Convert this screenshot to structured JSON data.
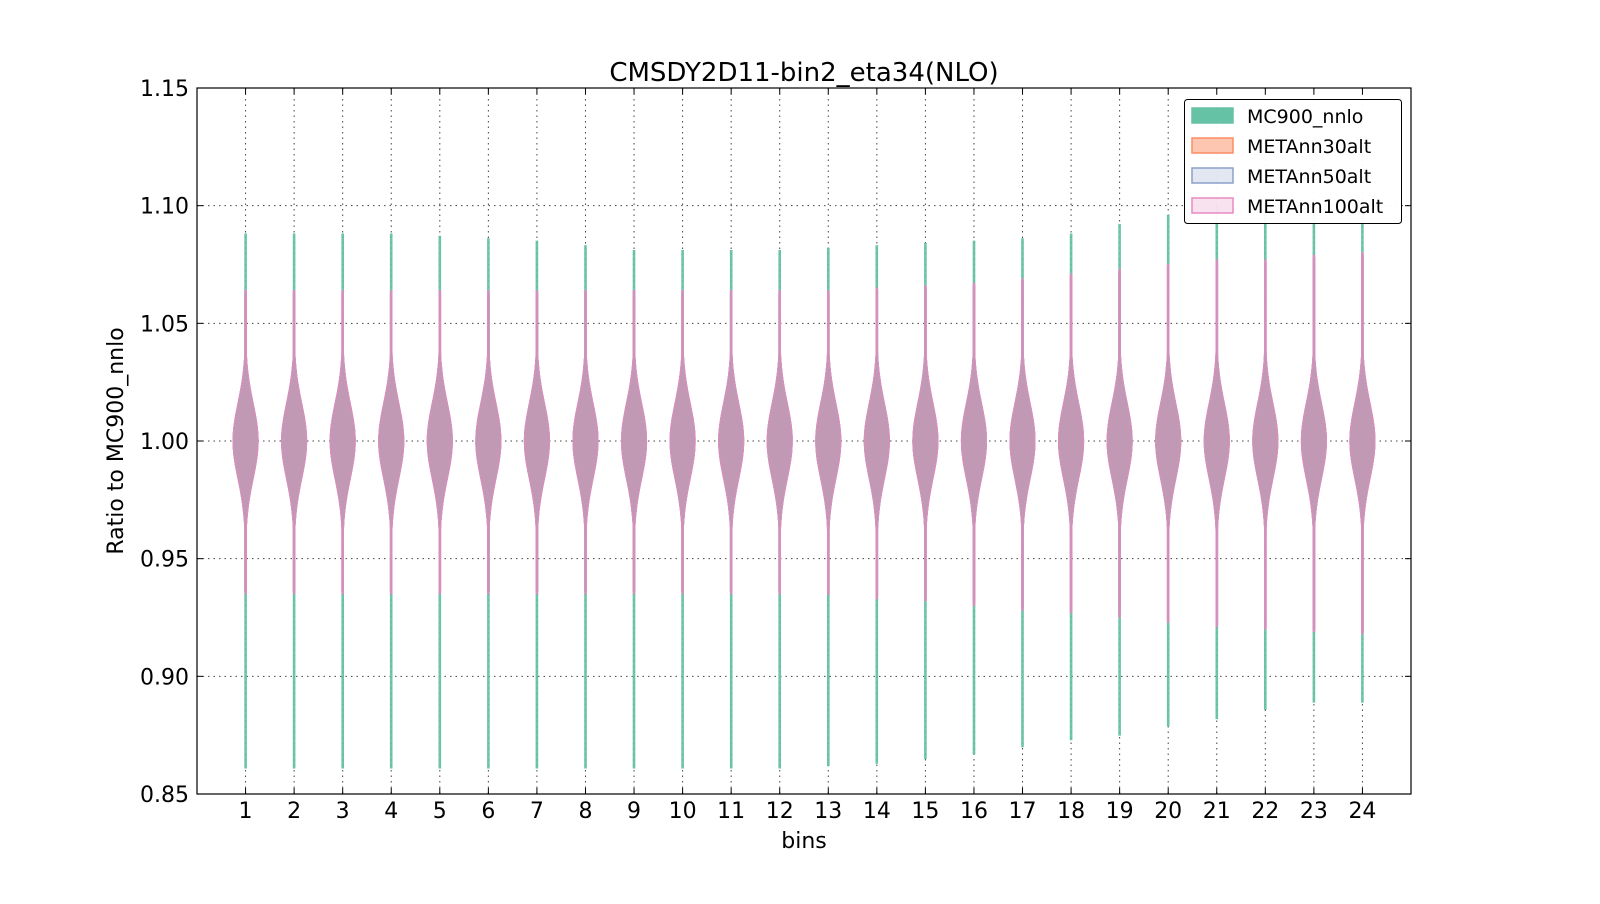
{
  "chart_data": {
    "type": "violin",
    "title": "CMSDY2D11-bin2_eta34(NLO)",
    "xlabel": "bins",
    "ylabel": "Ratio to MC900_nnlo",
    "ylim": [
      0.85,
      1.15
    ],
    "xlim": [
      0,
      25
    ],
    "yticks": [
      "0.85",
      "0.90",
      "0.95",
      "1.00",
      "1.05",
      "1.10",
      "1.15"
    ],
    "categories": [
      "1",
      "2",
      "3",
      "4",
      "5",
      "6",
      "7",
      "8",
      "9",
      "10",
      "11",
      "12",
      "13",
      "14",
      "15",
      "16",
      "17",
      "18",
      "19",
      "20",
      "21",
      "22",
      "23",
      "24"
    ],
    "grid": true,
    "legend_placement": "top-right",
    "median": 1.0,
    "series": [
      {
        "name": "MC900_nnlo",
        "color": "#66c2a5",
        "min": [
          0.861,
          0.861,
          0.861,
          0.861,
          0.861,
          0.861,
          0.861,
          0.861,
          0.861,
          0.861,
          0.861,
          0.861,
          0.862,
          0.863,
          0.865,
          0.867,
          0.87,
          0.873,
          0.875,
          0.879,
          0.882,
          0.886,
          0.889,
          0.889
        ],
        "max": [
          1.088,
          1.088,
          1.088,
          1.088,
          1.087,
          1.086,
          1.085,
          1.083,
          1.081,
          1.081,
          1.081,
          1.081,
          1.082,
          1.083,
          1.084,
          1.085,
          1.086,
          1.088,
          1.092,
          1.096,
          1.1,
          1.1,
          1.1,
          1.1
        ]
      },
      {
        "name": "METAnn30alt",
        "color": "#fc8d62",
        "min": [
          0.936,
          0.936,
          0.936,
          0.936,
          0.936,
          0.936,
          0.936,
          0.936,
          0.936,
          0.936,
          0.936,
          0.936,
          0.935,
          0.934,
          0.933,
          0.931,
          0.929,
          0.928,
          0.926,
          0.924,
          0.922,
          0.921,
          0.92,
          0.919
        ],
        "max": [
          1.063,
          1.063,
          1.063,
          1.063,
          1.063,
          1.063,
          1.063,
          1.063,
          1.063,
          1.063,
          1.063,
          1.063,
          1.063,
          1.064,
          1.065,
          1.066,
          1.068,
          1.07,
          1.072,
          1.074,
          1.076,
          1.076,
          1.078,
          1.079
        ]
      },
      {
        "name": "METAnn50alt",
        "color": "#8da0cb",
        "min": [
          0.936,
          0.936,
          0.936,
          0.936,
          0.936,
          0.936,
          0.936,
          0.936,
          0.936,
          0.936,
          0.936,
          0.936,
          0.935,
          0.934,
          0.933,
          0.931,
          0.929,
          0.928,
          0.926,
          0.924,
          0.922,
          0.921,
          0.92,
          0.919
        ],
        "max": [
          1.063,
          1.063,
          1.063,
          1.063,
          1.063,
          1.063,
          1.063,
          1.063,
          1.063,
          1.063,
          1.063,
          1.063,
          1.063,
          1.064,
          1.065,
          1.066,
          1.068,
          1.07,
          1.072,
          1.074,
          1.076,
          1.076,
          1.078,
          1.079
        ]
      },
      {
        "name": "METAnn100alt",
        "color": "#e78ac3",
        "min": [
          0.935,
          0.935,
          0.935,
          0.935,
          0.935,
          0.935,
          0.935,
          0.935,
          0.935,
          0.935,
          0.935,
          0.935,
          0.935,
          0.933,
          0.932,
          0.93,
          0.928,
          0.927,
          0.925,
          0.923,
          0.921,
          0.92,
          0.919,
          0.918
        ],
        "max": [
          1.064,
          1.064,
          1.064,
          1.064,
          1.064,
          1.064,
          1.064,
          1.064,
          1.064,
          1.064,
          1.064,
          1.064,
          1.064,
          1.065,
          1.066,
          1.067,
          1.069,
          1.071,
          1.073,
          1.075,
          1.077,
          1.077,
          1.079,
          1.08
        ]
      }
    ]
  }
}
